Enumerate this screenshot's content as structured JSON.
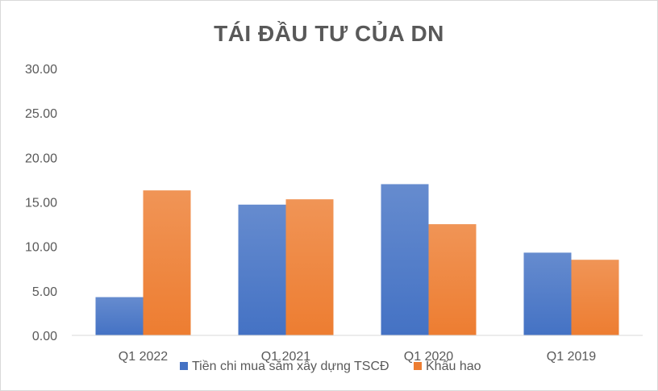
{
  "chart_data": {
    "type": "bar",
    "title": "TÁI ĐẦU TƯ CỦA DN",
    "categories": [
      "Q1 2022",
      "Q1 2021",
      "Q1 2020",
      "Q1 2019"
    ],
    "series": [
      {
        "name": "Tiền chi mua sắm xây dựng TSCĐ",
        "values": [
          4.3,
          14.7,
          17.0,
          9.3
        ],
        "color": "#4472c4"
      },
      {
        "name": "Khấu hao",
        "values": [
          16.3,
          15.3,
          12.5,
          8.5
        ],
        "color": "#ed7d31"
      }
    ],
    "ylim": [
      0,
      30
    ],
    "yticks": [
      "0.00",
      "5.00",
      "10.00",
      "15.00",
      "20.00",
      "25.00",
      "30.00"
    ],
    "grid": false,
    "legend_position": "bottom"
  }
}
